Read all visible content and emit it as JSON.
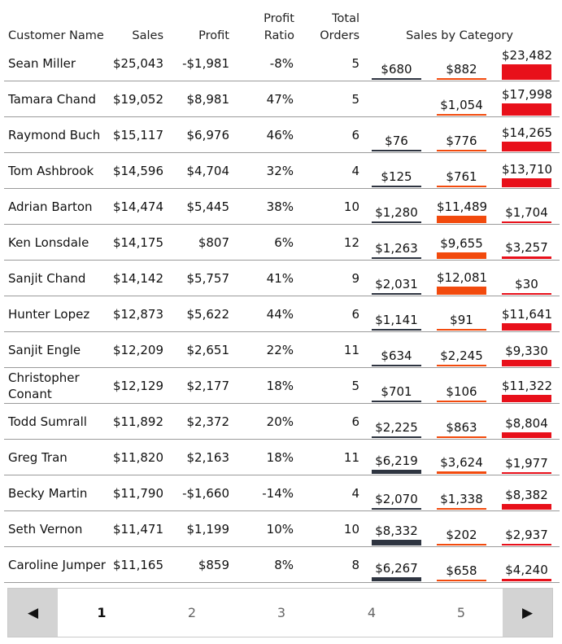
{
  "headers": {
    "customer_name": "Customer Name",
    "sales": "Sales",
    "profit": "Profit",
    "profit_ratio_line1": "Profit",
    "profit_ratio_line2": "Ratio",
    "orders_line1": "Total",
    "orders_line2": "Orders",
    "sales_by_category": "Sales by Category"
  },
  "colors": {
    "cat0": "#2e3440",
    "cat1": "#f24a0d",
    "cat2": "#e8101a"
  },
  "category_scale_max": 23482,
  "rows": [
    {
      "name": "Sean Miller",
      "sales": "$25,043",
      "profit": "-$1,981",
      "ratio": "-8%",
      "orders": "5",
      "cats": [
        {
          "label": "$680",
          "value": 680
        },
        {
          "label": "$882",
          "value": 882
        },
        {
          "label": "$23,482",
          "value": 23482
        }
      ]
    },
    {
      "name": "Tamara Chand",
      "sales": "$19,052",
      "profit": "$8,981",
      "ratio": "47%",
      "orders": "5",
      "cats": [
        {
          "label": "",
          "value": 0
        },
        {
          "label": "$1,054",
          "value": 1054
        },
        {
          "label": "$17,998",
          "value": 17998
        }
      ]
    },
    {
      "name": "Raymond Buch",
      "sales": "$15,117",
      "profit": "$6,976",
      "ratio": "46%",
      "orders": "6",
      "cats": [
        {
          "label": "$76",
          "value": 76
        },
        {
          "label": "$776",
          "value": 776
        },
        {
          "label": "$14,265",
          "value": 14265
        }
      ]
    },
    {
      "name": "Tom Ashbrook",
      "sales": "$14,596",
      "profit": "$4,704",
      "ratio": "32%",
      "orders": "4",
      "cats": [
        {
          "label": "$125",
          "value": 125
        },
        {
          "label": "$761",
          "value": 761
        },
        {
          "label": "$13,710",
          "value": 13710
        }
      ]
    },
    {
      "name": "Adrian Barton",
      "sales": "$14,474",
      "profit": "$5,445",
      "ratio": "38%",
      "orders": "10",
      "cats": [
        {
          "label": "$1,280",
          "value": 1280
        },
        {
          "label": "$11,489",
          "value": 11489
        },
        {
          "label": "$1,704",
          "value": 1704
        }
      ]
    },
    {
      "name": "Ken Lonsdale",
      "sales": "$14,175",
      "profit": "$807",
      "ratio": "6%",
      "orders": "12",
      "cats": [
        {
          "label": "$1,263",
          "value": 1263
        },
        {
          "label": "$9,655",
          "value": 9655
        },
        {
          "label": "$3,257",
          "value": 3257
        }
      ]
    },
    {
      "name": "Sanjit Chand",
      "sales": "$14,142",
      "profit": "$5,757",
      "ratio": "41%",
      "orders": "9",
      "cats": [
        {
          "label": "$2,031",
          "value": 2031
        },
        {
          "label": "$12,081",
          "value": 12081
        },
        {
          "label": "$30",
          "value": 30
        }
      ]
    },
    {
      "name": "Hunter Lopez",
      "sales": "$12,873",
      "profit": "$5,622",
      "ratio": "44%",
      "orders": "6",
      "cats": [
        {
          "label": "$1,141",
          "value": 1141
        },
        {
          "label": "$91",
          "value": 91
        },
        {
          "label": "$11,641",
          "value": 11641
        }
      ]
    },
    {
      "name": "Sanjit Engle",
      "sales": "$12,209",
      "profit": "$2,651",
      "ratio": "22%",
      "orders": "11",
      "cats": [
        {
          "label": "$634",
          "value": 634
        },
        {
          "label": "$2,245",
          "value": 2245
        },
        {
          "label": "$9,330",
          "value": 9330
        }
      ]
    },
    {
      "name": "Christopher Conant",
      "sales": "$12,129",
      "profit": "$2,177",
      "ratio": "18%",
      "orders": "5",
      "cats": [
        {
          "label": "$701",
          "value": 701
        },
        {
          "label": "$106",
          "value": 106
        },
        {
          "label": "$11,322",
          "value": 11322
        }
      ]
    },
    {
      "name": "Todd Sumrall",
      "sales": "$11,892",
      "profit": "$2,372",
      "ratio": "20%",
      "orders": "6",
      "cats": [
        {
          "label": "$2,225",
          "value": 2225
        },
        {
          "label": "$863",
          "value": 863
        },
        {
          "label": "$8,804",
          "value": 8804
        }
      ]
    },
    {
      "name": "Greg Tran",
      "sales": "$11,820",
      "profit": "$2,163",
      "ratio": "18%",
      "orders": "11",
      "cats": [
        {
          "label": "$6,219",
          "value": 6219
        },
        {
          "label": "$3,624",
          "value": 3624
        },
        {
          "label": "$1,977",
          "value": 1977
        }
      ]
    },
    {
      "name": "Becky Martin",
      "sales": "$11,790",
      "profit": "-$1,660",
      "ratio": "-14%",
      "orders": "4",
      "cats": [
        {
          "label": "$2,070",
          "value": 2070
        },
        {
          "label": "$1,338",
          "value": 1338
        },
        {
          "label": "$8,382",
          "value": 8382
        }
      ]
    },
    {
      "name": "Seth Vernon",
      "sales": "$11,471",
      "profit": "$1,199",
      "ratio": "10%",
      "orders": "10",
      "cats": [
        {
          "label": "$8,332",
          "value": 8332
        },
        {
          "label": "$202",
          "value": 202
        },
        {
          "label": "$2,937",
          "value": 2937
        }
      ]
    },
    {
      "name": "Caroline Jumper",
      "sales": "$11,165",
      "profit": "$859",
      "ratio": "8%",
      "orders": "8",
      "cats": [
        {
          "label": "$6,267",
          "value": 6267
        },
        {
          "label": "$658",
          "value": 658
        },
        {
          "label": "$4,240",
          "value": 4240
        }
      ]
    }
  ],
  "pagination": {
    "prev_icon": "triangle-left-icon",
    "next_icon": "triangle-right-icon",
    "prev_glyph": "◀",
    "next_glyph": "▶",
    "pages": [
      "1",
      "2",
      "3",
      "4",
      "5"
    ],
    "current": "1"
  }
}
